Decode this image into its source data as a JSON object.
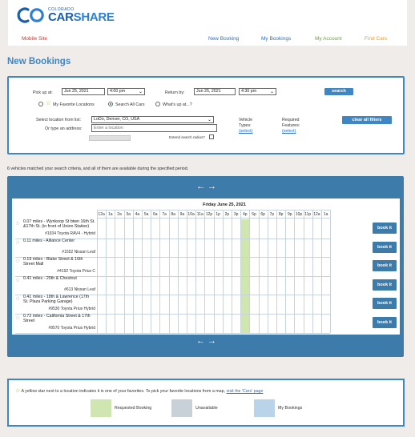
{
  "header": {
    "logo_small": "COLORADO",
    "logo_big_a": "CAR",
    "logo_big_b": "SHARE",
    "nav": {
      "mobile": "Mobile Site",
      "new_booking": "New Booking",
      "my_bookings": "My Bookings",
      "my_account": "My Account",
      "find_cars": "Find Cars"
    }
  },
  "page_title": "New Bookings",
  "search": {
    "pickup_label": "Pick up at:",
    "pickup_date": "Jun 25, 2021",
    "pickup_time": "4:00 pm",
    "return_label": "Return by:",
    "return_date": "Jun 25, 2021",
    "return_time": "4:30 pm",
    "search_button": "search",
    "radio_favorites": "My Favorite Locations",
    "radio_all": "Search All Cars",
    "radio_whats_up": "What's up at...?",
    "location_label": "Select location from list:",
    "location_value": "LoDo, Denver, CO, USA",
    "address_label": "Or type an address:",
    "address_placeholder": "Enter a location",
    "extend_label": "Extend search radius?",
    "vehicle_types_label_1": "Vehicle",
    "vehicle_types_label_2": "Types:",
    "vehicle_types_link": "(select)",
    "features_label_1": "Required",
    "features_label_2": "Features:",
    "features_link": "(select)",
    "clear_filters": "clear all filters"
  },
  "match_text": "6 vehicles matched your search criteria, and all of them are available during the specified period.",
  "grid": {
    "date": "Friday June 25, 2021",
    "hours": [
      "12a",
      "1a",
      "2a",
      "3a",
      "4a",
      "5a",
      "6a",
      "7a",
      "8a",
      "9a",
      "10a",
      "11a",
      "12p",
      "1p",
      "2p",
      "3p",
      "4p",
      "5p",
      "6p",
      "7p",
      "8p",
      "9p",
      "10p",
      "11p",
      "12a",
      "1a"
    ],
    "current_hour_index": 16,
    "book_label": "book it",
    "rows": [
      {
        "location": "0.07 miles - Wynkoop St btwn 16th St. &17th St. (in front of Union Station)",
        "car": "#1934 Toyota RAV4 - Hybrid"
      },
      {
        "location": "0.11 miles - Alliance Center",
        "car": "#1552 Nissan Leaf"
      },
      {
        "location": "0.19 miles - Blake Street & 16th Street Mall",
        "car": "#4192 Toyota Prius C"
      },
      {
        "location": "0.41 miles - 20th & Chestnut",
        "car": "#613 Nissan Leaf"
      },
      {
        "location": "0.41 miles - 18th & Lawrence (17th St. Plaza Parking Garage)",
        "car": "#9530 Toyota Prius Hybrid"
      },
      {
        "location": "0.72 miles - California Street & 17th Street",
        "car": "#9570 Toyota Prius Hybrid"
      }
    ]
  },
  "legend": {
    "note_pre": "A yellow star next to a location indicates it is one of your favorites. To pick your favorite locations from a map,",
    "note_link": "visit the 'Cars' page",
    "requested": "Requested Booking",
    "unavailable": "Unavailable",
    "my_bookings": "My Bookings"
  },
  "colors": {
    "accent": "#3f86c2",
    "panel": "#3d7bab",
    "requested": "#cfe6b0",
    "unavailable": "#c9d1d8",
    "mine": "#b9d3e8"
  }
}
